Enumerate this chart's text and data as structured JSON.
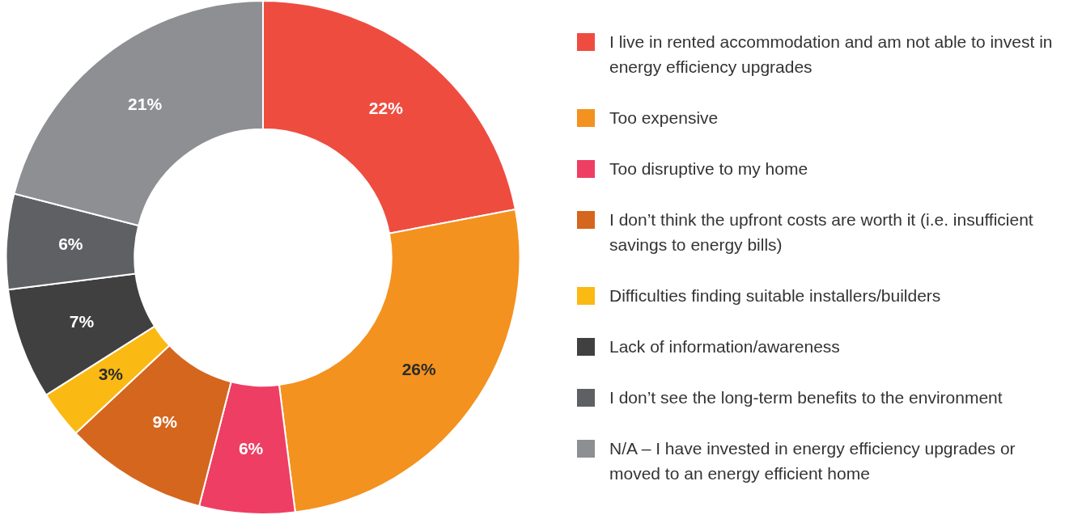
{
  "chart_data": {
    "type": "donut",
    "categories": [
      "I live in rented accommodation and am not able to invest in energy efficiency upgrades",
      "Too expensive",
      "Too disruptive to my home",
      "I don’t think the upfront costs are worth it (i.e. insufficient savings to energy bills)",
      "Difficulties finding suitable installers/builders",
      "Lack of information/awareness",
      "I don’t see the long-term benefits to the environment",
      "N/A – I have invested in energy efficiency upgrades or moved to an energy efficient home"
    ],
    "values": [
      22,
      26,
      6,
      9,
      3,
      7,
      6,
      21
    ],
    "colors": [
      "#ef4c40",
      "#f3921f",
      "#ee3e63",
      "#d5661e",
      "#fbb913",
      "#404041",
      "#5f6064",
      "#8e8f93"
    ],
    "value_labels": [
      "22%",
      "26%",
      "6%",
      "9%",
      "3%",
      "7%",
      "6%",
      "21%"
    ],
    "legend": "right"
  }
}
